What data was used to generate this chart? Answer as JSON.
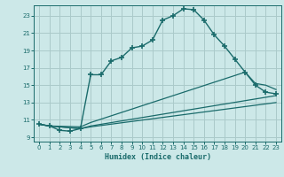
{
  "xlabel": "Humidex (Indice chaleur)",
  "xlim": [
    -0.5,
    23.5
  ],
  "ylim": [
    8.5,
    24.2
  ],
  "xticks": [
    0,
    1,
    2,
    3,
    4,
    5,
    6,
    7,
    8,
    9,
    10,
    11,
    12,
    13,
    14,
    15,
    16,
    17,
    18,
    19,
    20,
    21,
    22,
    23
  ],
  "yticks": [
    9,
    11,
    13,
    15,
    17,
    19,
    21,
    23
  ],
  "bg_color": "#cce8e8",
  "line_color": "#1a6b6b",
  "grid_color": "#aacaca",
  "line1_x": [
    0,
    1,
    2,
    3,
    4,
    5,
    6,
    7,
    8,
    9,
    10,
    11,
    12,
    13,
    14,
    15,
    16,
    17,
    18,
    19,
    20,
    21,
    22,
    23
  ],
  "line1_y": [
    10.5,
    10.3,
    9.8,
    9.7,
    10.0,
    16.2,
    16.2,
    17.8,
    18.2,
    19.3,
    19.5,
    20.2,
    22.5,
    23.0,
    23.8,
    23.7,
    22.5,
    20.8,
    19.5,
    18.0,
    16.5,
    15.0,
    14.2,
    14.0
  ],
  "line2_x": [
    0,
    1,
    4,
    5,
    20,
    21,
    22,
    23
  ],
  "line2_y": [
    10.5,
    10.3,
    10.2,
    10.7,
    16.5,
    15.2,
    15.0,
    14.5
  ],
  "line3_x": [
    0,
    1,
    4,
    5,
    23
  ],
  "line3_y": [
    10.5,
    10.3,
    10.0,
    10.3,
    13.8
  ],
  "line4_x": [
    0,
    1,
    4,
    5,
    23
  ],
  "line4_y": [
    10.5,
    10.3,
    10.0,
    10.2,
    13.0
  ]
}
